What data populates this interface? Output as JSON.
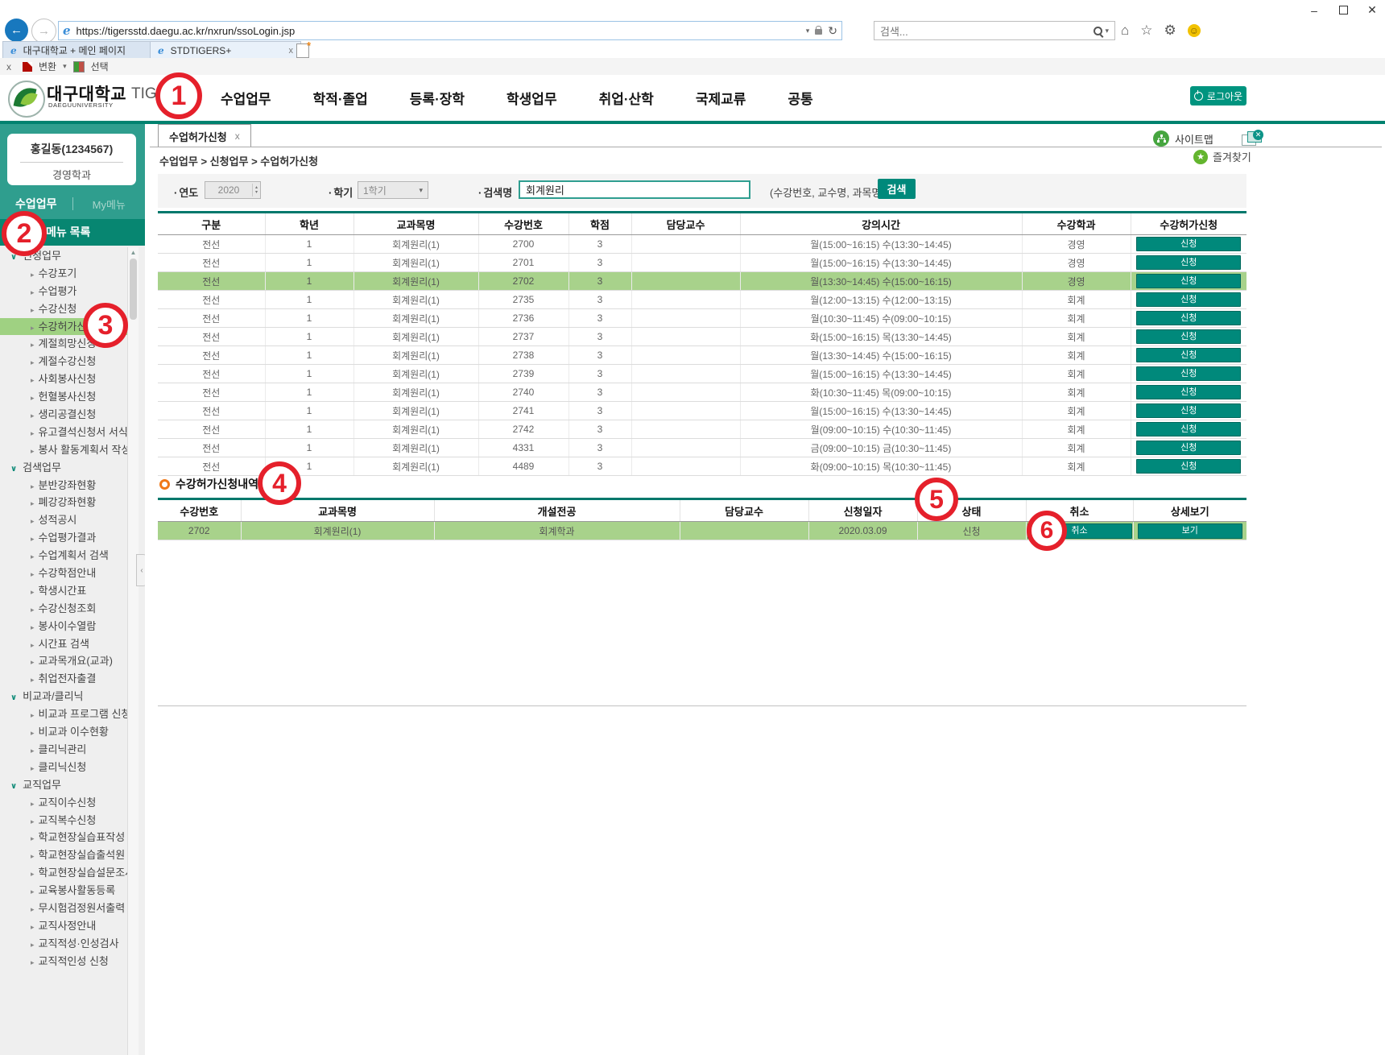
{
  "browser": {
    "url": "https://tigersstd.daegu.ac.kr/nxrun/ssoLogin.jsp",
    "search_placeholder": "검색...",
    "tabs": [
      {
        "label": "대구대학교 + 메인 페이지",
        "active": false
      },
      {
        "label": "STDTIGERS+",
        "active": true
      }
    ],
    "command_bar": {
      "close": "x",
      "convert": "변환",
      "select": "선택"
    },
    "icons": [
      "back-icon",
      "forward-icon",
      "ie-icon",
      "dropdown-caret-icon",
      "lock-icon",
      "refresh-icon",
      "magnifier-icon",
      "home-icon",
      "star-icon",
      "gear-icon",
      "smiley-icon",
      "new-tab-icon",
      "minimize-icon",
      "maximize-icon",
      "close-icon"
    ]
  },
  "header": {
    "university": "대구대학교",
    "university_en": "DAEGUUNIVERSITY",
    "brand": "TIGERS+",
    "nav": [
      "수업업무",
      "학적·졸업",
      "등록·장학",
      "학생업무",
      "취업·산학",
      "국제교류",
      "공통"
    ],
    "logout": "로그아웃"
  },
  "sidebar": {
    "user_name": "홍길동(1234567)",
    "user_dept": "경영학과",
    "tab_primary": "수업업무",
    "tab_secondary": "My메뉴",
    "menu_title": "메뉴 목록",
    "active_item": "수강허가신청",
    "sections": [
      {
        "label": "신청업무",
        "items": [
          "수강포기",
          "수업평가",
          "수강신청",
          "수강허가신청",
          "계절희망신청",
          "계절수강신청",
          "사회봉사신청",
          "헌혈봉사신청",
          "생리공결신청",
          "유고결석신청서 서식",
          "봉사 활동계획서 작성"
        ]
      },
      {
        "label": "검색업무",
        "items": [
          "분반강좌현황",
          "폐강강좌현황",
          "성적공시",
          "수업평가결과",
          "수업계획서 검색",
          "수강학점안내",
          "학생시간표",
          "수강신청조회",
          "봉사이수열람",
          "시간표 검색",
          "교과목개요(교과)",
          "취업전자출결"
        ]
      },
      {
        "label": "비교과/클리닉",
        "items": [
          "비교과 프로그램 신청",
          "비교과 이수현황",
          "클리닉관리",
          "클리닉신청"
        ]
      },
      {
        "label": "교직업무",
        "items": [
          "교직이수신청",
          "교직복수신청",
          "학교현장실습표작성",
          "학교현장실습출석원",
          "학교현장실습설문조사",
          "교육봉사활동등록",
          "무시험검정원서출력",
          "교직사정안내",
          "교직적성·인성검사",
          "교직적인성 신청"
        ]
      }
    ]
  },
  "content": {
    "page_tab": "수업허가신청",
    "sitemap_label": "사이트맵",
    "favorite_label": "즐겨찾기",
    "breadcrumb": "수업업무 > 신청업무 > 수업허가신청",
    "form": {
      "year_label": "연도",
      "year_value": "2020",
      "term_label": "학기",
      "term_value": "1학기",
      "query_label": "검색명",
      "query_value": "회계원리",
      "hint": "(수강번호, 교수명, 과목명)",
      "search_button": "검색"
    },
    "course_table": {
      "headers": [
        "구분",
        "학년",
        "교과목명",
        "수강번호",
        "학점",
        "담당교수",
        "강의시간",
        "수강학과",
        "수강허가신청"
      ],
      "apply_button": "신청",
      "highlighted_index": 2,
      "rows": [
        [
          "전선",
          "1",
          "회계원리(1)",
          "2700",
          "3",
          "",
          "월(15:00~16:15) 수(13:30~14:45)",
          "경영"
        ],
        [
          "전선",
          "1",
          "회계원리(1)",
          "2701",
          "3",
          "",
          "월(15:00~16:15) 수(13:30~14:45)",
          "경영"
        ],
        [
          "전선",
          "1",
          "회계원리(1)",
          "2702",
          "3",
          "",
          "월(13:30~14:45) 수(15:00~16:15)",
          "경영"
        ],
        [
          "전선",
          "1",
          "회계원리(1)",
          "2735",
          "3",
          "",
          "월(12:00~13:15) 수(12:00~13:15)",
          "회계"
        ],
        [
          "전선",
          "1",
          "회계원리(1)",
          "2736",
          "3",
          "",
          "월(10:30~11:45) 수(09:00~10:15)",
          "회계"
        ],
        [
          "전선",
          "1",
          "회계원리(1)",
          "2737",
          "3",
          "",
          "화(15:00~16:15) 목(13:30~14:45)",
          "회계"
        ],
        [
          "전선",
          "1",
          "회계원리(1)",
          "2738",
          "3",
          "",
          "월(13:30~14:45) 수(15:00~16:15)",
          "회계"
        ],
        [
          "전선",
          "1",
          "회계원리(1)",
          "2739",
          "3",
          "",
          "월(15:00~16:15) 수(13:30~14:45)",
          "회계"
        ],
        [
          "전선",
          "1",
          "회계원리(1)",
          "2740",
          "3",
          "",
          "화(10:30~11:45) 목(09:00~10:15)",
          "회계"
        ],
        [
          "전선",
          "1",
          "회계원리(1)",
          "2741",
          "3",
          "",
          "월(15:00~16:15) 수(13:30~14:45)",
          "회계"
        ],
        [
          "전선",
          "1",
          "회계원리(1)",
          "2742",
          "3",
          "",
          "월(09:00~10:15) 수(10:30~11:45)",
          "회계"
        ],
        [
          "전선",
          "1",
          "회계원리(1)",
          "4331",
          "3",
          "",
          "금(09:00~10:15) 금(10:30~11:45)",
          "회계"
        ],
        [
          "전선",
          "1",
          "회계원리(1)",
          "4489",
          "3",
          "",
          "화(09:00~10:15) 목(10:30~11:45)",
          "회계"
        ]
      ]
    },
    "history": {
      "title": "수강허가신청내역",
      "headers": [
        "수강번호",
        "교과목명",
        "개설전공",
        "담당교수",
        "신청일자",
        "상태",
        "취소",
        "상세보기"
      ],
      "row": [
        "2702",
        "회계원리(1)",
        "회계학과",
        "",
        "2020.03.09",
        "신청"
      ],
      "cancel_button": "취소",
      "view_button": "보기"
    }
  },
  "annotations": {
    "numbers": [
      "1",
      "2",
      "3",
      "4",
      "5",
      "6"
    ]
  },
  "colors": {
    "teal": "#00826f",
    "sidebar_green": "#2f9e8e",
    "menu_bar_green": "#078671",
    "highlight_green": "#a8d28b",
    "active_menu_green": "#9fd182",
    "button_teal": "#00897b",
    "annotation_red": "#e5202b",
    "favorite_green": "#63b52e"
  }
}
